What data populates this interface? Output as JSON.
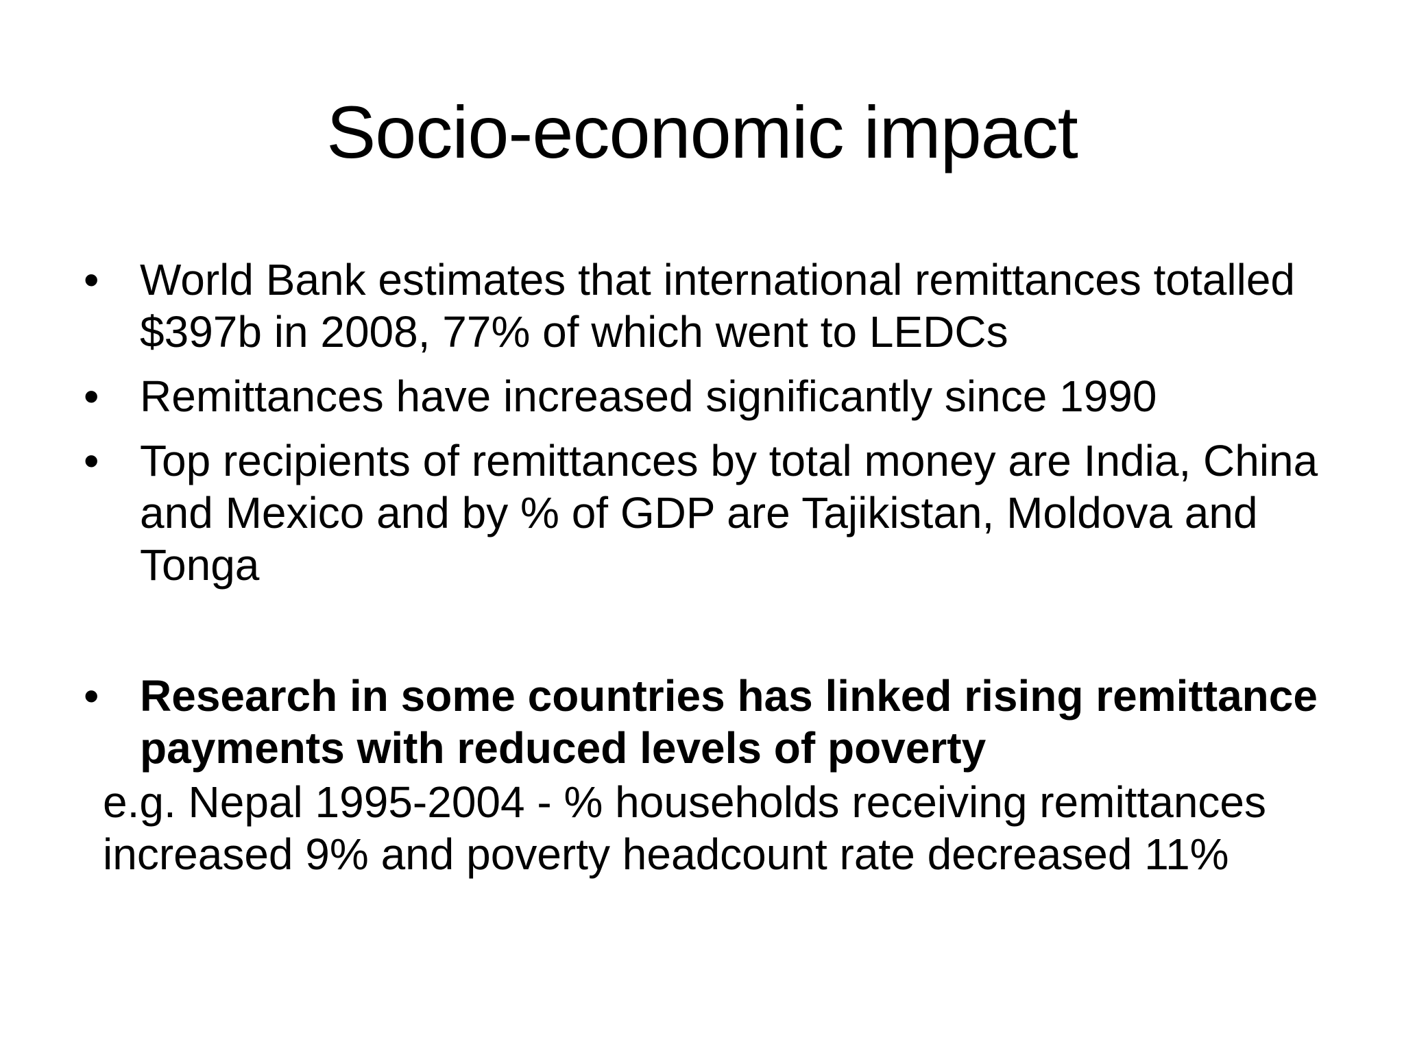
{
  "slide": {
    "title": "Socio-economic impact",
    "bullets": [
      {
        "marker": "•",
        "text": "World Bank estimates that international remittances totalled $397b in 2008, 77% of which went to LEDCs"
      },
      {
        "marker": "•",
        "text": "Remittances have increased significantly since 1990"
      },
      {
        "marker": "•",
        "text": "Top recipients of remittances by total money are India, China and Mexico and by % of GDP are Tajikistan, Moldova and Tonga"
      },
      {
        "marker": "•",
        "text": "Research in some countries has linked rising remittance payments with reduced levels of poverty"
      }
    ],
    "example": "e.g. Nepal 1995-2004 - % households receiving remittances increased 9% and poverty headcount rate decreased 11%"
  }
}
